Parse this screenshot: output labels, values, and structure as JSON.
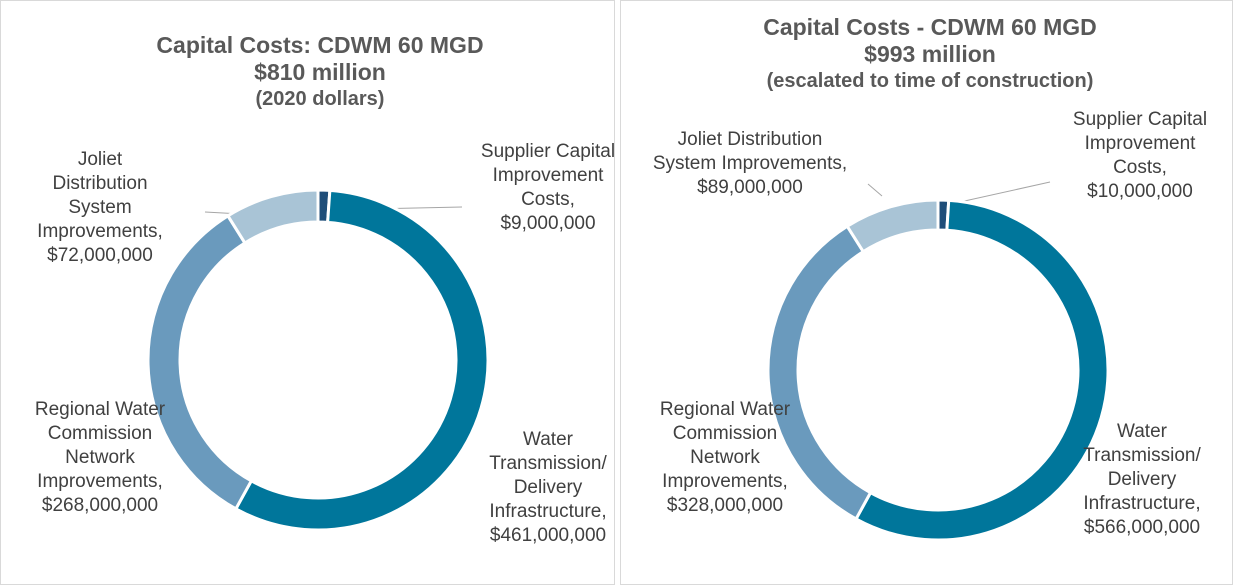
{
  "chart_data": [
    {
      "type": "pie",
      "title": "Capital Costs: CDWM 60 MGD",
      "subtitle": "$810 million",
      "note": "(2020 dollars)",
      "categories": [
        "Supplier Capital Improvement Costs,",
        "Water Transmission/ Delivery Infrastructure,",
        "Regional Water Commission Network Improvements,",
        "Joliet Distribution System Improvements,"
      ],
      "values": [
        9000000,
        461000000,
        268000000,
        72000000
      ],
      "value_labels": [
        "$9,000,000",
        "$461,000,000",
        "$268,000,000",
        "$72,000,000"
      ],
      "colors": [
        "#1f4e79",
        "#00769b",
        "#6a9abd",
        "#a9c4d6"
      ]
    },
    {
      "type": "pie",
      "title": "Capital Costs - CDWM 60 MGD",
      "subtitle": "$993 million",
      "note": "(escalated to time of construction)",
      "categories": [
        "Supplier Capital Improvement Costs,",
        "Water Transmission/ Delivery Infrastructure,",
        "Regional Water Commission Network Improvements,",
        "Joliet Distribution System Improvements,"
      ],
      "values": [
        10000000,
        566000000,
        328000000,
        89000000
      ],
      "value_labels": [
        "$10,000,000",
        "$566,000,000",
        "$328,000,000",
        "$89,000,000"
      ],
      "colors": [
        "#1f4e79",
        "#00769b",
        "#6a9abd",
        "#a9c4d6"
      ]
    }
  ]
}
